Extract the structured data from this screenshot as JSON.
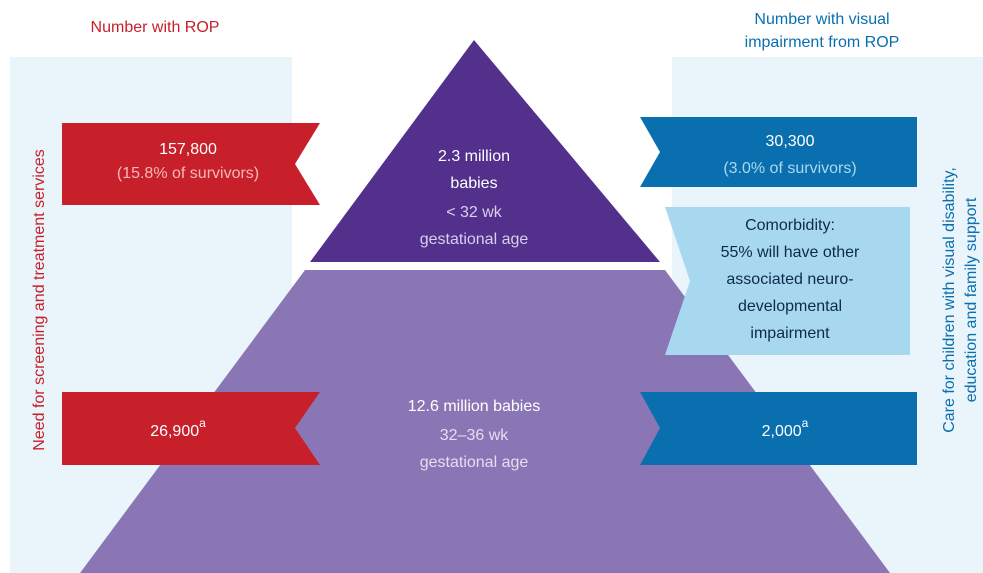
{
  "headers": {
    "left": "Number with ROP",
    "right": [
      "Number with visual",
      "impairment from ROP"
    ]
  },
  "side_labels": {
    "left": "Need for screening and treatment services",
    "right": [
      "Care for children with visual disability,",
      "education and family support"
    ]
  },
  "pyramid": {
    "top": [
      "2.3 million",
      "babies",
      "< 32 wk",
      "gestational age"
    ],
    "bottom": [
      "12.6 million babies",
      "32–36 wk",
      "gestational age"
    ]
  },
  "banners": {
    "left_top": {
      "value": "157,800",
      "note": "(15.8% of survivors)"
    },
    "right_top": {
      "value": "30,300",
      "note": "(3.0% of survivors)"
    },
    "comorbidity": [
      "Comorbidity:",
      "55% will have other",
      "associated neuro-",
      "developmental",
      "impairment"
    ],
    "left_bottom": {
      "value": "26,900",
      "sup": "a"
    },
    "right_bottom": {
      "value": "2,000",
      "sup": "a"
    }
  }
}
